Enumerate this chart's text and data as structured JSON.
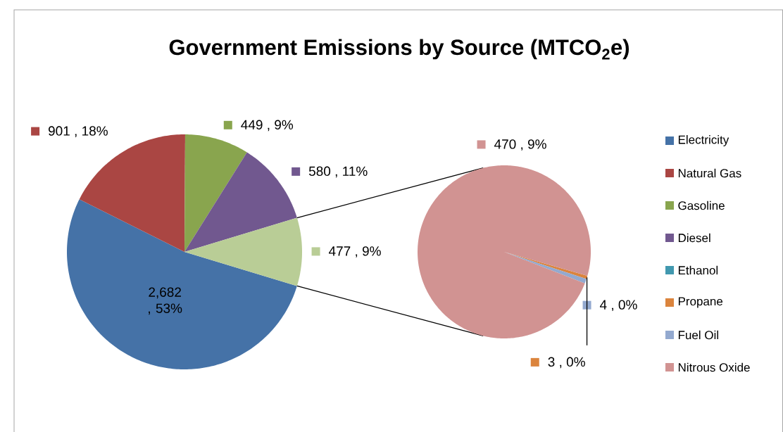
{
  "chart_data": [
    {
      "type": "pie",
      "title": "Government Emissions by Source (MTCO$_{2}$e)",
      "categories": [
        "Electricity",
        "Natural Gas",
        "Gasoline",
        "Diesel",
        null
      ],
      "values": [
        2682,
        901,
        449,
        580,
        477
      ],
      "colors": [
        "#4572a7",
        "#aa4643",
        "#89a54e",
        "#71588f",
        "#b9cd96"
      ],
      "value_labels": [
        "2,682 , 53%",
        "901 , 18%",
        "449 , 9%",
        "580 , 11%",
        "477 , 9%"
      ],
      "legend": "right"
    },
    {
      "type": "pie",
      "categories": [
        "Ethanol",
        "Propane",
        "Fuel Oil",
        "Nitrous Oxide"
      ],
      "values": [
        0,
        3,
        4,
        470
      ],
      "colors": [
        "#4198af",
        "#db843d",
        "#93a9cf",
        "#d19392"
      ],
      "value_labels": [
        null,
        "3 , 0%",
        "4 , 0%",
        "470 , 9%"
      ],
      "legend": "right"
    }
  ]
}
